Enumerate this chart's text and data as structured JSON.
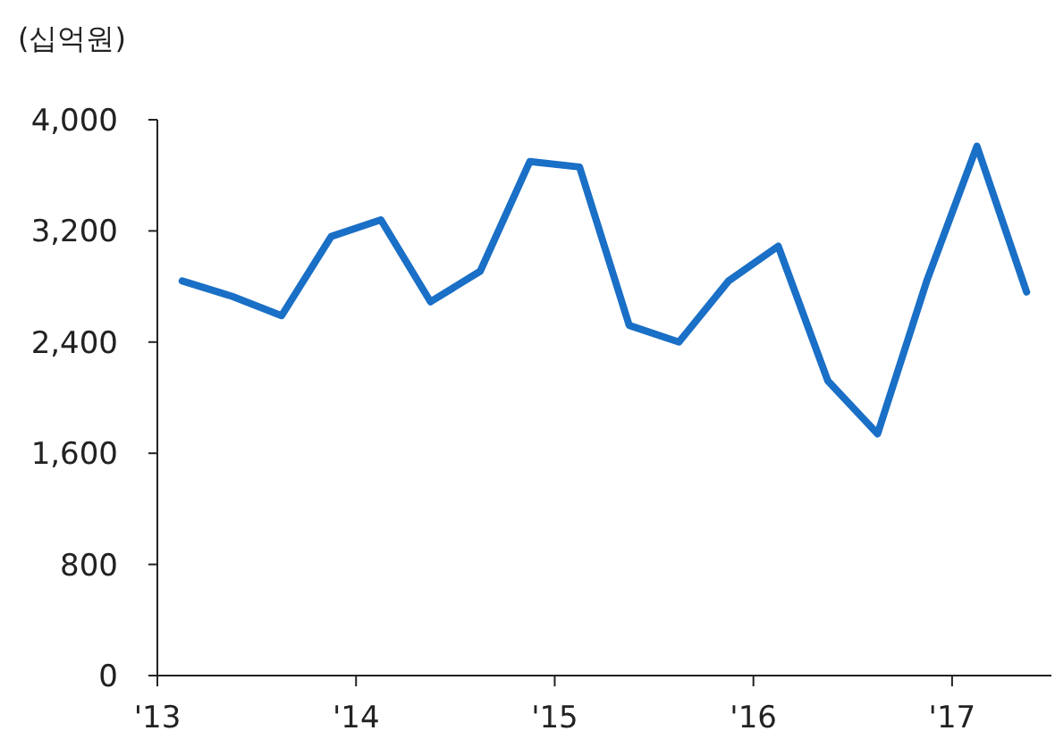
{
  "chart_data": {
    "type": "line",
    "ylabel": "(십억원)",
    "x": [
      2013.125,
      2013.375,
      2013.625,
      2013.875,
      2014.125,
      2014.375,
      2014.625,
      2014.875,
      2015.125,
      2015.375,
      2015.625,
      2015.875,
      2016.125,
      2016.375,
      2016.625,
      2016.875,
      2017.125,
      2017.375
    ],
    "series": [
      {
        "color": "#1a6fc6",
        "values": [
          2840,
          2730,
          2590,
          3160,
          3280,
          2690,
          2910,
          3700,
          3660,
          2520,
          2400,
          2840,
          3090,
          2120,
          1740,
          2850,
          3810,
          2760
        ]
      }
    ],
    "xlim": [
      2013,
      2017.5
    ],
    "xticks": [
      {
        "value": 2013,
        "label": "'13"
      },
      {
        "value": 2014,
        "label": "'14"
      },
      {
        "value": 2015,
        "label": "'15"
      },
      {
        "value": 2016,
        "label": "'16"
      },
      {
        "value": 2017,
        "label": "'17"
      }
    ],
    "ylim": [
      0,
      4000
    ],
    "yticks": [
      {
        "value": 0,
        "label": "0"
      },
      {
        "value": 800,
        "label": "800"
      },
      {
        "value": 1600,
        "label": "1,600"
      },
      {
        "value": 2400,
        "label": "2,400"
      },
      {
        "value": 3200,
        "label": "3,200"
      },
      {
        "value": 4000,
        "label": "4,000"
      }
    ],
    "grid": false,
    "marker": "none",
    "line_style": "solid"
  }
}
